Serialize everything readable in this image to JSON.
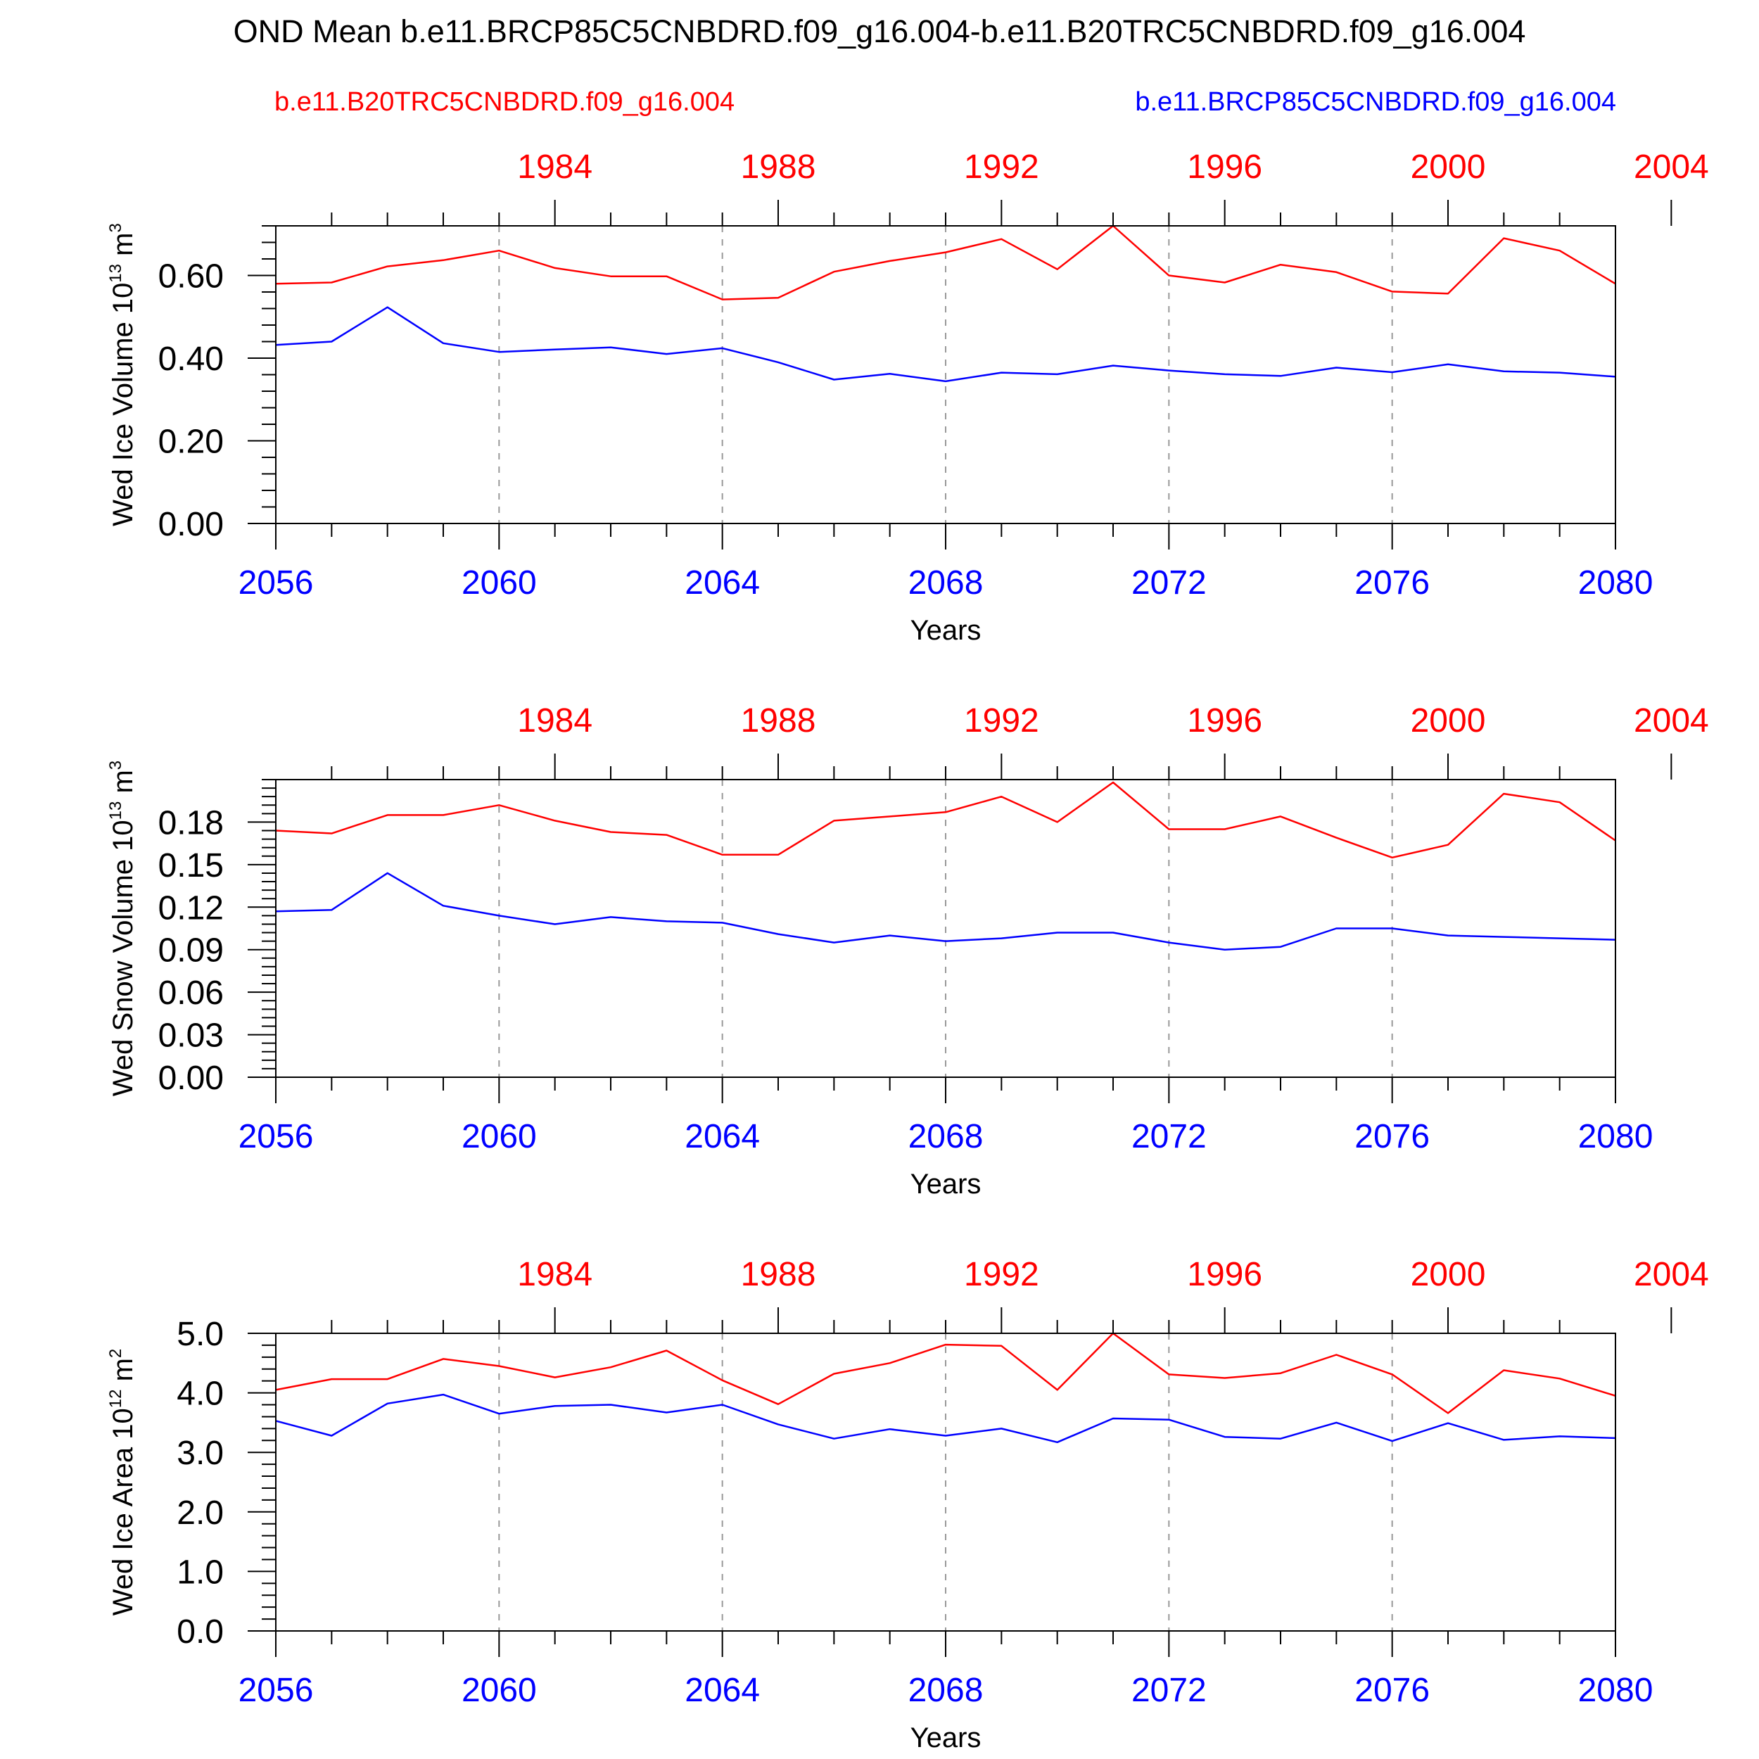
{
  "title": "OND Mean b.e11.BRCP85C5CNBDRD.f09_g16.004-b.e11.B20TRC5CNBDRD.f09_g16.004",
  "legend": {
    "red_label": "b.e11.B20TRC5CNBDRD.f09_g16.004",
    "blue_label": "b.e11.BRCP85C5CNBDRD.f09_g16.004"
  },
  "colors": {
    "red": "#ff0000",
    "blue": "#0000ff",
    "axis": "#000000",
    "grid": "#999999"
  },
  "chart_data": [
    {
      "type": "line",
      "ylabel": "Wed Ice Volume",
      "yunit_base": "10",
      "yunit_exp": "13",
      "yunit_rest": "m",
      "yunit_rest_exp": "3",
      "xlabel": "Years",
      "ylim": [
        0,
        0.72
      ],
      "yticks": [
        0,
        0.2,
        0.4,
        0.6
      ],
      "ytick_labels": [
        "0.00",
        "0.20",
        "0.40",
        "0.60"
      ],
      "yminor_step": 0.04,
      "xlim": [
        2056,
        2080
      ],
      "bottom_ticks": [
        2056,
        2060,
        2064,
        2068,
        2072,
        2076,
        2080
      ],
      "top_ticks": [
        1984,
        1988,
        1992,
        1996,
        2000,
        2004
      ],
      "top_offset": 77,
      "series": [
        {
          "name": "b.e11.B20TRC5CNBDRD.f09_g16.004",
          "color": "red",
          "x_start": 2056,
          "values": [
            0.58,
            0.583,
            0.622,
            0.637,
            0.66,
            0.618,
            0.598,
            0.598,
            0.542,
            0.546,
            0.609,
            0.635,
            0.656,
            0.688,
            0.615,
            0.72,
            0.6,
            0.583,
            0.626,
            0.608,
            0.561,
            0.556,
            0.69,
            0.66,
            0.58
          ]
        },
        {
          "name": "b.e11.BRCP85C5CNBDRD.f09_g16.004",
          "color": "blue",
          "x_start": 2056,
          "values": [
            0.432,
            0.44,
            0.523,
            0.436,
            0.415,
            0.421,
            0.426,
            0.41,
            0.424,
            0.39,
            0.348,
            0.362,
            0.344,
            0.365,
            0.361,
            0.382,
            0.37,
            0.361,
            0.357,
            0.377,
            0.366,
            0.385,
            0.368,
            0.365,
            0.355
          ]
        }
      ]
    },
    {
      "type": "line",
      "ylabel": "Wed Snow Volume",
      "yunit_base": "10",
      "yunit_exp": "13",
      "yunit_rest": "m",
      "yunit_rest_exp": "3",
      "xlabel": "Years",
      "ylim": [
        0,
        0.21
      ],
      "yticks": [
        0,
        0.03,
        0.06,
        0.09,
        0.12,
        0.15,
        0.18
      ],
      "ytick_labels": [
        "0.00",
        "0.03",
        "0.06",
        "0.09",
        "0.12",
        "0.15",
        "0.18"
      ],
      "yminor_step": 0.006,
      "xlim": [
        2056,
        2080
      ],
      "bottom_ticks": [
        2056,
        2060,
        2064,
        2068,
        2072,
        2076,
        2080
      ],
      "top_ticks": [
        1984,
        1988,
        1992,
        1996,
        2000,
        2004
      ],
      "top_offset": 77,
      "series": [
        {
          "name": "b.e11.B20TRC5CNBDRD.f09_g16.004",
          "color": "red",
          "x_start": 2056,
          "values": [
            0.174,
            0.172,
            0.185,
            0.185,
            0.192,
            0.181,
            0.173,
            0.171,
            0.157,
            0.157,
            0.181,
            0.184,
            0.187,
            0.198,
            0.18,
            0.208,
            0.175,
            0.175,
            0.184,
            0.169,
            0.155,
            0.164,
            0.2,
            0.194,
            0.167
          ]
        },
        {
          "name": "b.e11.BRCP85C5CNBDRD.f09_g16.004",
          "color": "blue",
          "x_start": 2056,
          "values": [
            0.117,
            0.118,
            0.144,
            0.121,
            0.114,
            0.108,
            0.113,
            0.11,
            0.109,
            0.101,
            0.095,
            0.1,
            0.096,
            0.098,
            0.102,
            0.102,
            0.095,
            0.09,
            0.092,
            0.105,
            0.105,
            0.1,
            0.099,
            0.098,
            0.097
          ]
        }
      ]
    },
    {
      "type": "line",
      "ylabel": "Wed Ice Area",
      "yunit_base": "10",
      "yunit_exp": "12",
      "yunit_rest": "m",
      "yunit_rest_exp": "2",
      "xlabel": "Years",
      "ylim": [
        0,
        5.0
      ],
      "yticks": [
        0,
        1,
        2,
        3,
        4,
        5
      ],
      "ytick_labels": [
        "0.0",
        "1.0",
        "2.0",
        "3.0",
        "4.0",
        "5.0"
      ],
      "yminor_step": 0.2,
      "xlim": [
        2056,
        2080
      ],
      "bottom_ticks": [
        2056,
        2060,
        2064,
        2068,
        2072,
        2076,
        2080
      ],
      "top_ticks": [
        1984,
        1988,
        1992,
        1996,
        2000,
        2004
      ],
      "top_offset": 77,
      "series": [
        {
          "name": "b.e11.B20TRC5CNBDRD.f09_g16.004",
          "color": "red",
          "x_start": 2056,
          "values": [
            4.05,
            4.23,
            4.23,
            4.57,
            4.45,
            4.26,
            4.43,
            4.71,
            4.21,
            3.81,
            4.32,
            4.5,
            4.81,
            4.79,
            4.05,
            5.0,
            4.31,
            4.25,
            4.33,
            4.64,
            4.31,
            3.66,
            4.38,
            4.24,
            3.95
          ]
        },
        {
          "name": "b.e11.BRCP85C5CNBDRD.f09_g16.004",
          "color": "blue",
          "x_start": 2056,
          "values": [
            3.53,
            3.28,
            3.82,
            3.97,
            3.65,
            3.78,
            3.8,
            3.67,
            3.8,
            3.47,
            3.23,
            3.39,
            3.28,
            3.4,
            3.17,
            3.57,
            3.55,
            3.26,
            3.23,
            3.5,
            3.19,
            3.49,
            3.21,
            3.27,
            3.24
          ]
        }
      ]
    }
  ]
}
